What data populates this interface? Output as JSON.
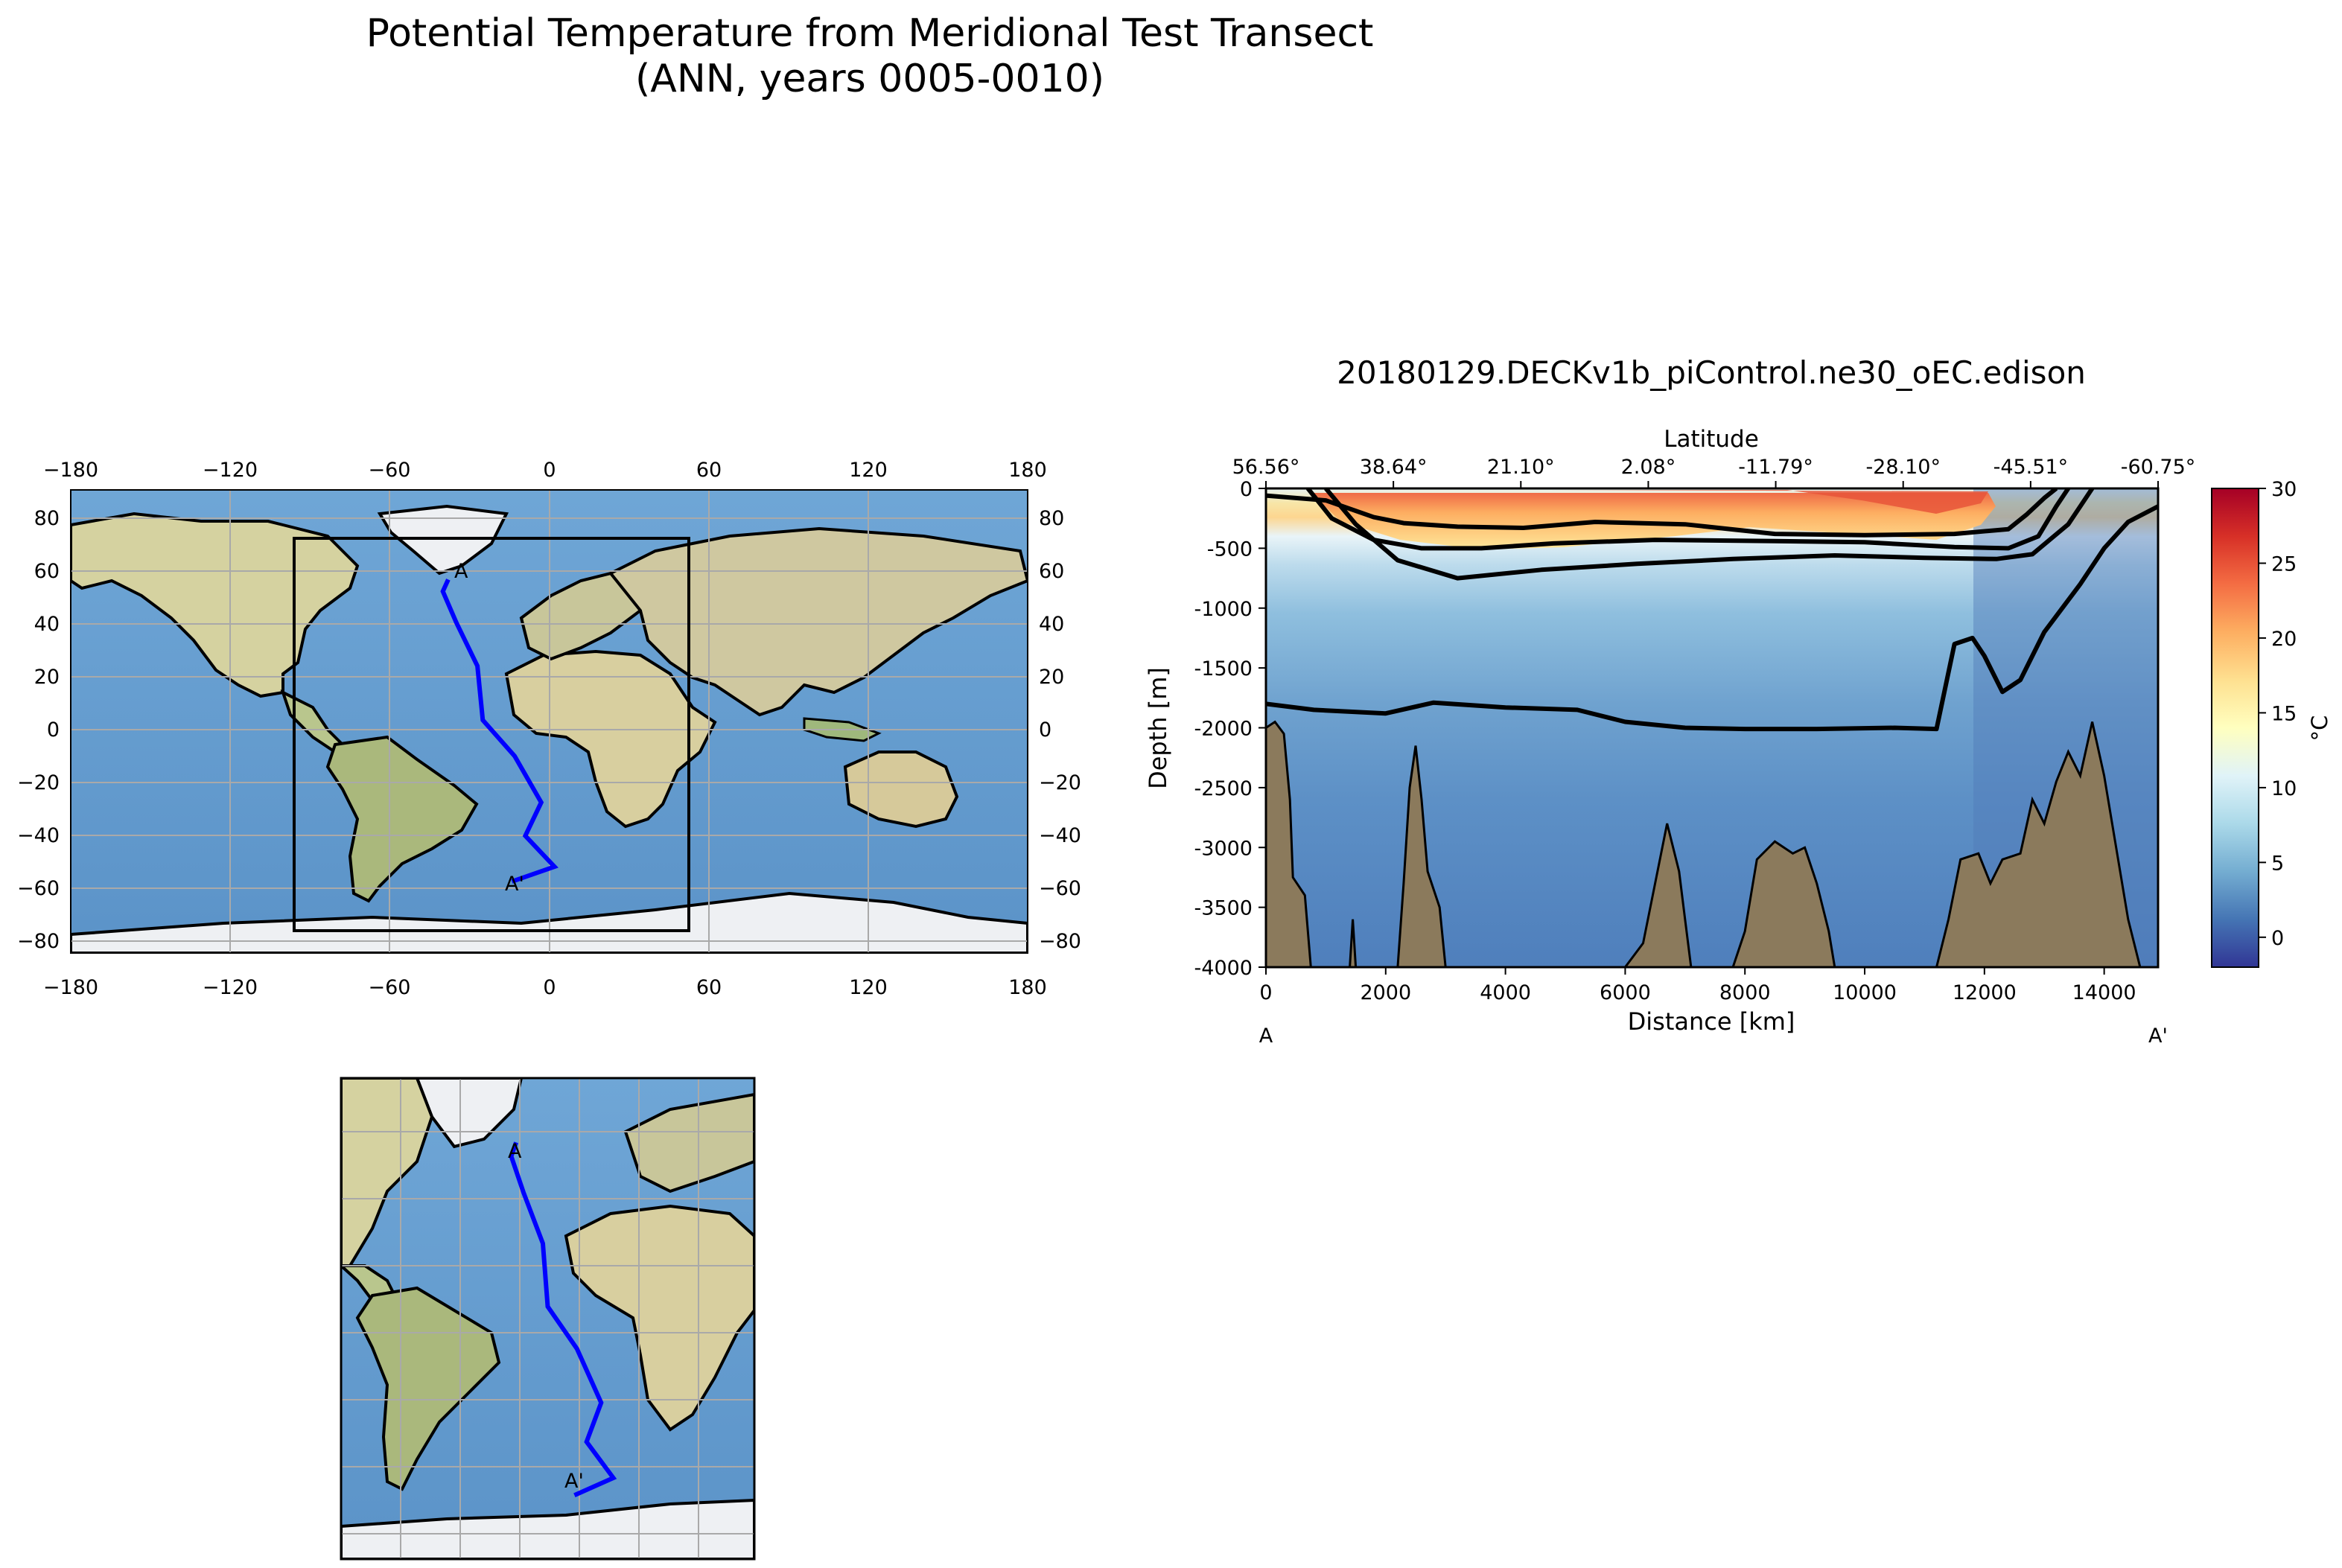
{
  "figure": {
    "title_line1": "Potential Temperature from Meridional Test Transect",
    "title_line2": "(ANN, years 0005-0010)"
  },
  "global_map": {
    "lon_ticks": [
      "−180",
      "−120",
      "−60",
      "0",
      "60",
      "120",
      "180"
    ],
    "lat_ticks": [
      "80",
      "60",
      "40",
      "20",
      "0",
      "−20",
      "−40",
      "−60",
      "−80"
    ],
    "start_label": "A",
    "end_label": "A'",
    "transect_color": "#0000ff"
  },
  "chart_data": {
    "type": "heatmap",
    "title": "20180129.DECKv1b_piControl.ne30_oEC.edison",
    "xlabel": "Distance [km]",
    "ylabel": "Depth [m]",
    "top_axis_label": "Latitude",
    "colorbar_label": "°C",
    "colormap": "RdYlBu_r",
    "xlim": [
      0,
      14900
    ],
    "ylim": [
      -4000,
      0
    ],
    "clim": [
      -2,
      30
    ],
    "x_ticks": [
      "0",
      "2000",
      "4000",
      "6000",
      "8000",
      "10000",
      "12000",
      "14000"
    ],
    "y_ticks": [
      "0",
      "-500",
      "-1000",
      "-1500",
      "-2000",
      "-2500",
      "-3000",
      "-3500",
      "-4000"
    ],
    "lat_ticks": [
      "56.56°",
      "38.64°",
      "21.10°",
      "2.08°",
      "-11.79°",
      "-28.10°",
      "-45.51°",
      "-60.75°"
    ],
    "colorbar_ticks": [
      "30",
      "25",
      "20",
      "15",
      "10",
      "5",
      "0"
    ],
    "start_label": "A",
    "end_label": "A'",
    "transect_lat_lon": [
      [
        56.6,
        -38
      ],
      [
        52,
        -40
      ],
      [
        40,
        -35
      ],
      [
        23,
        -27
      ],
      [
        2,
        -25
      ],
      [
        -12,
        -13
      ],
      [
        -30,
        -3
      ],
      [
        -43,
        -9
      ],
      [
        -55,
        2
      ],
      [
        -60.75,
        -14
      ]
    ],
    "contours_degC": [
      {
        "depth_m": [
          [
            0,
            -60
          ],
          [
            1000,
            -100
          ],
          [
            1800,
            -240
          ],
          [
            2300,
            -290
          ],
          [
            3200,
            -320
          ],
          [
            4300,
            -330
          ],
          [
            5500,
            -280
          ],
          [
            7000,
            -300
          ],
          [
            8500,
            -380
          ],
          [
            10000,
            -390
          ],
          [
            11500,
            -380
          ],
          [
            12400,
            -340
          ],
          [
            12700,
            -220
          ],
          [
            13000,
            -80
          ],
          [
            13200,
            0
          ]
        ]
      },
      {
        "depth_m": [
          [
            700,
            0
          ],
          [
            1100,
            -250
          ],
          [
            1800,
            -430
          ],
          [
            2600,
            -500
          ],
          [
            3600,
            -500
          ],
          [
            4800,
            -460
          ],
          [
            6500,
            -430
          ],
          [
            8500,
            -440
          ],
          [
            10000,
            -450
          ],
          [
            11500,
            -490
          ],
          [
            12400,
            -500
          ],
          [
            12900,
            -400
          ],
          [
            13200,
            -150
          ],
          [
            13400,
            0
          ]
        ]
      },
      {
        "depth_m": [
          [
            1000,
            0
          ],
          [
            1500,
            -300
          ],
          [
            2200,
            -600
          ],
          [
            3200,
            -750
          ],
          [
            4600,
            -680
          ],
          [
            6200,
            -630
          ],
          [
            7800,
            -590
          ],
          [
            9500,
            -560
          ],
          [
            11000,
            -580
          ],
          [
            12200,
            -590
          ],
          [
            12800,
            -550
          ],
          [
            13400,
            -300
          ],
          [
            13800,
            0
          ]
        ]
      },
      {
        "depth_m": [
          [
            0,
            -1800
          ],
          [
            800,
            -1850
          ],
          [
            2000,
            -1880
          ],
          [
            2800,
            -1790
          ],
          [
            4000,
            -1830
          ],
          [
            5200,
            -1850
          ],
          [
            6000,
            -1950
          ],
          [
            7000,
            -2000
          ],
          [
            8000,
            -2010
          ],
          [
            9200,
            -2010
          ],
          [
            10500,
            -2000
          ],
          [
            11200,
            -2010
          ],
          [
            11500,
            -1300
          ],
          [
            11800,
            -1250
          ],
          [
            12000,
            -1400
          ],
          [
            12300,
            -1700
          ],
          [
            12600,
            -1600
          ],
          [
            13000,
            -1200
          ],
          [
            13600,
            -800
          ],
          [
            14000,
            -500
          ],
          [
            14400,
            -280
          ],
          [
            14900,
            -150
          ]
        ]
      }
    ],
    "bathymetry_depth_m": [
      [
        0,
        -4000
      ],
      [
        0,
        -2000
      ],
      [
        150,
        -1950
      ],
      [
        300,
        -2050
      ],
      [
        400,
        -2600
      ],
      [
        450,
        -3250
      ],
      [
        650,
        -3400
      ],
      [
        750,
        -4000
      ],
      [
        1400,
        -4000
      ],
      [
        1450,
        -3600
      ],
      [
        1500,
        -4000
      ],
      [
        2200,
        -4000
      ],
      [
        2300,
        -3300
      ],
      [
        2400,
        -2500
      ],
      [
        2500,
        -2150
      ],
      [
        2600,
        -2600
      ],
      [
        2700,
        -3200
      ],
      [
        2900,
        -3500
      ],
      [
        3000,
        -4000
      ],
      [
        6000,
        -4000
      ],
      [
        6300,
        -3800
      ],
      [
        6500,
        -3300
      ],
      [
        6700,
        -2800
      ],
      [
        6900,
        -3200
      ],
      [
        7000,
        -3600
      ],
      [
        7100,
        -4000
      ],
      [
        7800,
        -4000
      ],
      [
        8000,
        -3700
      ],
      [
        8200,
        -3100
      ],
      [
        8500,
        -2950
      ],
      [
        8800,
        -3050
      ],
      [
        9000,
        -3000
      ],
      [
        9200,
        -3300
      ],
      [
        9400,
        -3700
      ],
      [
        9500,
        -4000
      ],
      [
        11200,
        -4000
      ],
      [
        11400,
        -3600
      ],
      [
        11600,
        -3100
      ],
      [
        11900,
        -3050
      ],
      [
        12100,
        -3300
      ],
      [
        12300,
        -3100
      ],
      [
        12600,
        -3050
      ],
      [
        12800,
        -2600
      ],
      [
        13000,
        -2800
      ],
      [
        13200,
        -2450
      ],
      [
        13400,
        -2200
      ],
      [
        13600,
        -2400
      ],
      [
        13800,
        -1950
      ],
      [
        14000,
        -2400
      ],
      [
        14200,
        -3000
      ],
      [
        14400,
        -3600
      ],
      [
        14600,
        -4000
      ]
    ]
  },
  "inset_map": {
    "start_label": "A",
    "end_label": "A'"
  }
}
